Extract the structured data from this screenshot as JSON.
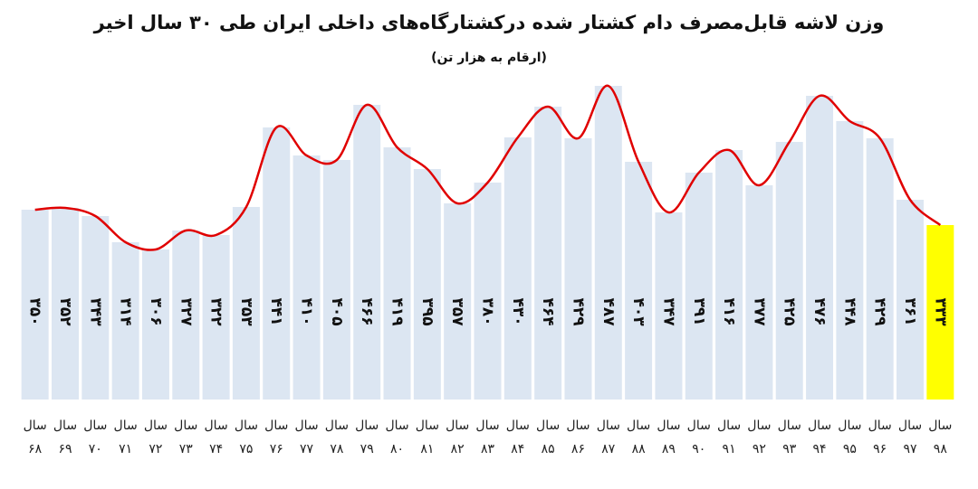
{
  "chart_data": {
    "type": "bar",
    "title": "وزن لاشه قابل‌مصرف دام کشتار شده درکشتارگاه‌های داخلی ایران طی ۳۰ سال اخیر",
    "subtitle": "(ارقام به هزار تن)",
    "categories": [
      "سال ۶۸",
      "سال ۶۹",
      "سال ۷۰",
      "سال ۷۱",
      "سال ۷۲",
      "سال ۷۳",
      "سال ۷۴",
      "سال ۷۵",
      "سال ۷۶",
      "سال ۷۷",
      "سال ۷۸",
      "سال ۷۹",
      "سال ۸۰",
      "سال ۸۱",
      "سال ۸۲",
      "سال ۸۳",
      "سال ۸۴",
      "سال ۸۵",
      "سال ۸۶",
      "سال ۸۷",
      "سال ۸۸",
      "سال ۸۹",
      "سال ۹۰",
      "سال ۹۱",
      "سال ۹۲",
      "سال ۹۳",
      "سال ۹۴",
      "سال ۹۵",
      "سال ۹۶",
      "سال ۹۷",
      "سال ۹۸"
    ],
    "values": [
      350,
      352,
      343,
      314,
      306,
      327,
      322,
      353,
      441,
      410,
      405,
      466,
      419,
      395,
      357,
      380,
      430,
      464,
      429,
      487,
      403,
      347,
      391,
      416,
      377,
      425,
      476,
      448,
      429,
      361,
      333
    ],
    "value_labels": [
      "۳۵۰",
      "۳۵۲",
      "۳۴۳",
      "۳۱۴",
      "۳۰۶",
      "۳۲۷",
      "۳۲۲",
      "۳۵۳",
      "۴۴۱",
      "۴۱۰",
      "۴۰۵",
      "۴۶۶",
      "۴۱۹",
      "۳۹۵",
      "۳۵۷",
      "۳۸۰",
      "۴۳۰",
      "۴۶۴",
      "۴۲۹",
      "۴۸۷",
      "۴۰۳",
      "۳۴۷",
      "۳۹۱",
      "۴۱۶",
      "۳۷۷",
      "۴۲۵",
      "۴۷۶",
      "۴۴۸",
      "۴۲۹",
      "۳۶۱",
      "۳۳۳"
    ],
    "colors": [
      "#dce6f2",
      "#dce6f2",
      "#dce6f2",
      "#dce6f2",
      "#dce6f2",
      "#dce6f2",
      "#dce6f2",
      "#dce6f2",
      "#dce6f2",
      "#dce6f2",
      "#dce6f2",
      "#dce6f2",
      "#dce6f2",
      "#dce6f2",
      "#dce6f2",
      "#dce6f2",
      "#dce6f2",
      "#dce6f2",
      "#dce6f2",
      "#dce6f2",
      "#dce6f2",
      "#dce6f2",
      "#dce6f2",
      "#dce6f2",
      "#dce6f2",
      "#dce6f2",
      "#dce6f2",
      "#dce6f2",
      "#dce6f2",
      "#dce6f2",
      "#ffff00"
    ],
    "line_color": "#e00000",
    "ylim": [
      140,
      540
    ]
  }
}
